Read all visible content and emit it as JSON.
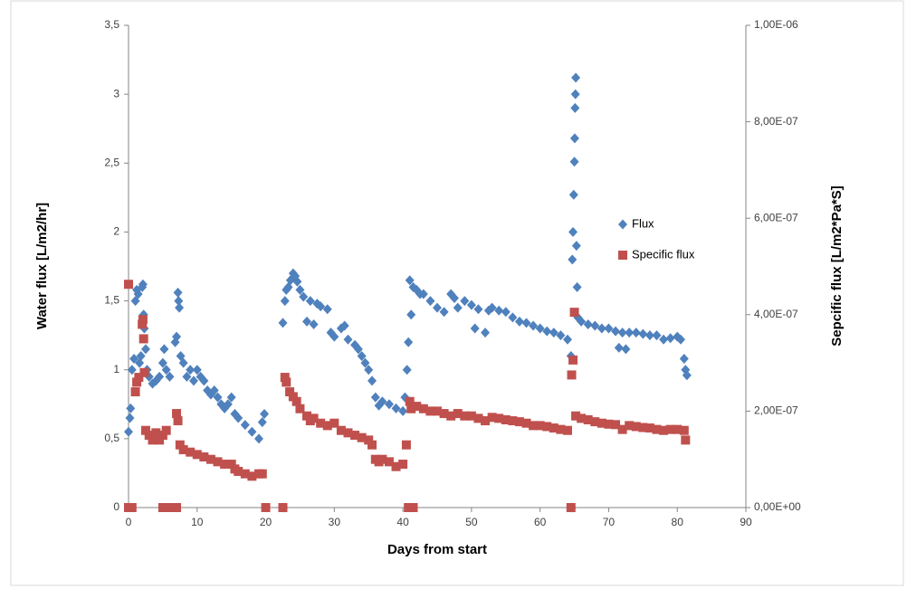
{
  "chart_data": {
    "type": "scatter",
    "xlabel": "Days from start",
    "ylabel": "Water flux [L/m2/hr]",
    "y2label": "Sepcific flux [L/m2*Pa*S]",
    "xlim": [
      0,
      90
    ],
    "xticks": [
      0,
      10,
      20,
      30,
      40,
      50,
      60,
      70,
      80,
      90
    ],
    "ylim": [
      0,
      3.5
    ],
    "yticks": [
      0,
      {
        "value": 0.5,
        "label": "0,5"
      },
      1,
      {
        "value": 1.5,
        "label": "1,5"
      },
      2,
      {
        "value": 2.5,
        "label": "2,5"
      },
      3,
      {
        "value": 3.5,
        "label": "3,5"
      }
    ],
    "y2lim": [
      0,
      1e-06
    ],
    "y2ticks": [
      {
        "value": 0,
        "label": "0,00E+00"
      },
      {
        "value": 2e-07,
        "label": "2,00E-07"
      },
      {
        "value": 4e-07,
        "label": "4,00E-07"
      },
      {
        "value": 6e-07,
        "label": "6,00E-07"
      },
      {
        "value": 8e-07,
        "label": "8,00E-07"
      },
      {
        "value": 1e-06,
        "label": "1,00E-06"
      }
    ],
    "grid": false,
    "legend": "right",
    "series": [
      {
        "name": "Flux",
        "color": "#4f81bd",
        "marker": "diamond",
        "x": [
          0,
          0.2,
          0.3,
          0.5,
          0.8,
          1,
          1.2,
          1.4,
          1.6,
          1.8,
          2,
          2.1,
          2.2,
          2.3,
          2.5,
          2.7,
          3,
          3.5,
          4,
          4.5,
          5,
          5.2,
          5.5,
          6,
          6.8,
          7,
          7.2,
          7.3,
          7.4,
          7.6,
          8,
          8.5,
          9,
          9.5,
          10,
          10.5,
          11,
          11.5,
          12,
          12.5,
          13,
          13.5,
          14,
          14.5,
          15,
          15.5,
          16,
          17,
          18,
          19,
          19.5,
          19.8,
          22.6,
          22.5,
          22.8,
          23,
          23.3,
          23.6,
          24,
          24.3,
          24.6,
          25,
          25.5,
          26,
          26.5,
          27,
          27.5,
          28,
          29,
          29.5,
          30,
          31,
          31.5,
          32,
          33,
          33.5,
          34,
          34.5,
          35,
          35.5,
          36,
          36.5,
          37,
          38,
          39,
          40,
          40.3,
          40.6,
          40.8,
          41,
          41.2,
          41.5,
          42,
          42.5,
          43,
          44,
          45,
          46,
          47,
          47.5,
          48,
          49,
          50,
          50.5,
          51,
          52,
          52.5,
          53,
          54,
          55,
          56,
          57,
          58,
          59,
          60,
          61,
          62,
          63,
          64,
          64.5,
          64.6,
          64.7,
          64.8,
          64.9,
          65,
          65.05,
          65.1,
          65.15,
          65.2,
          65.3,
          65.4,
          65.5,
          66,
          67,
          68,
          69,
          70,
          71,
          71.5,
          72,
          72.5,
          73,
          74,
          75,
          76,
          77,
          78,
          79,
          80,
          80.5,
          81,
          81.2,
          81.4
        ],
        "values": [
          0.55,
          0.65,
          0.72,
          1.0,
          1.08,
          1.5,
          1.58,
          1.55,
          1.05,
          1.1,
          1.6,
          1.62,
          1.4,
          1.3,
          1.15,
          1.0,
          0.95,
          0.9,
          0.92,
          0.95,
          1.05,
          1.15,
          1.0,
          0.95,
          1.2,
          1.24,
          1.56,
          1.5,
          1.45,
          1.1,
          1.05,
          0.95,
          1.0,
          0.92,
          1.0,
          0.95,
          0.92,
          0.85,
          0.82,
          0.85,
          0.8,
          0.75,
          0.72,
          0.75,
          0.8,
          0.68,
          0.65,
          0.6,
          0.55,
          0.5,
          0.62,
          0.68,
          0,
          1.34,
          1.5,
          1.58,
          1.6,
          1.65,
          1.7,
          1.68,
          1.64,
          1.58,
          1.53,
          1.35,
          1.5,
          1.33,
          1.48,
          1.46,
          1.44,
          1.27,
          1.24,
          1.3,
          1.32,
          1.22,
          1.18,
          1.15,
          1.1,
          1.05,
          1.0,
          0.92,
          0.8,
          0.74,
          0.77,
          0.75,
          0.72,
          0.7,
          0.8,
          1.0,
          1.2,
          1.65,
          1.4,
          1.6,
          1.58,
          1.55,
          1.55,
          1.5,
          1.45,
          1.42,
          1.55,
          1.52,
          1.45,
          1.5,
          1.47,
          1.3,
          1.44,
          1.27,
          1.43,
          1.45,
          1.43,
          1.42,
          1.38,
          1.35,
          1.34,
          1.32,
          1.3,
          1.28,
          1.27,
          1.25,
          1.22,
          1.1,
          0,
          1.8,
          2.0,
          2.27,
          2.51,
          2.68,
          2.9,
          3.0,
          3.12,
          1.9,
          1.6,
          1.38,
          1.35,
          1.33,
          1.32,
          1.3,
          1.3,
          1.28,
          1.16,
          1.27,
          1.15,
          1.27,
          1.27,
          1.26,
          1.25,
          1.25,
          1.22,
          1.23,
          1.24,
          1.22,
          1.08,
          1.0,
          0.96
        ]
      },
      {
        "name": "Specific flux",
        "color": "#c0504d",
        "marker": "square",
        "axis": "y2",
        "x": [
          0,
          0,
          0.5,
          1,
          1.2,
          1.5,
          2,
          2.1,
          2.2,
          2.3,
          2.5,
          3,
          3.5,
          4,
          4.5,
          5,
          5.5,
          5,
          6,
          7,
          7,
          7.2,
          7.5,
          8,
          9,
          10,
          11,
          12,
          13,
          14,
          15,
          15.5,
          16,
          17,
          18,
          19,
          19.5,
          20,
          22.5,
          22.8,
          23,
          23.5,
          24,
          24.5,
          25,
          26,
          26.5,
          27,
          28,
          29,
          30,
          31,
          32,
          33,
          34,
          35,
          35.5,
          36,
          36.5,
          37,
          38,
          39,
          40,
          40.5,
          40.8,
          41.5,
          41,
          41.2,
          42,
          43,
          44,
          45,
          46,
          47,
          48,
          49,
          50,
          51,
          52,
          53,
          54,
          55,
          56,
          57,
          58,
          59,
          60,
          61,
          62,
          63,
          64,
          64.5,
          64.6,
          64.8,
          65,
          65.2,
          66,
          67,
          68,
          69,
          70,
          71,
          72,
          73,
          74,
          75,
          76,
          77,
          78,
          79,
          80,
          81,
          81.2
        ],
        "values": [
          4.63e-07,
          0,
          0,
          2.4e-07,
          2.6e-07,
          2.7e-07,
          3.8e-07,
          3.9e-07,
          3.5e-07,
          2.8e-07,
          1.6e-07,
          1.5e-07,
          1.4e-07,
          1.55e-07,
          1.4e-07,
          1.5e-07,
          1.6e-07,
          0,
          0,
          0,
          1.95e-07,
          1.8e-07,
          1.3e-07,
          1.2e-07,
          1.15e-07,
          1.1e-07,
          1.05e-07,
          1e-07,
          9.5e-08,
          9e-08,
          9e-08,
          8e-08,
          7.5e-08,
          7e-08,
          6.5e-08,
          7e-08,
          7e-08,
          0,
          0,
          2.7e-07,
          2.6e-07,
          2.4e-07,
          2.3e-07,
          2.2e-07,
          2.05e-07,
          1.9e-07,
          1.8e-07,
          1.85e-07,
          1.75e-07,
          1.7e-07,
          1.75e-07,
          1.6e-07,
          1.55e-07,
          1.5e-07,
          1.45e-07,
          1.4e-07,
          1.3e-07,
          1e-07,
          9.5e-08,
          1e-07,
          9.5e-08,
          8.5e-08,
          9e-08,
          1.3e-07,
          0,
          0,
          2.2e-07,
          2.05e-07,
          2.1e-07,
          2.05e-07,
          2e-07,
          2e-07,
          1.95e-07,
          1.9e-07,
          1.95e-07,
          1.9e-07,
          1.9e-07,
          1.85e-07,
          1.8e-07,
          1.87e-07,
          1.85e-07,
          1.82e-07,
          1.8e-07,
          1.78e-07,
          1.75e-07,
          1.7e-07,
          1.7e-07,
          1.68e-07,
          1.65e-07,
          1.62e-07,
          1.6e-07,
          0,
          2.75e-07,
          3.06e-07,
          4.05e-07,
          1.9e-07,
          1.85e-07,
          1.82e-07,
          1.78e-07,
          1.75e-07,
          1.73e-07,
          1.72e-07,
          1.62e-07,
          1.7e-07,
          1.68e-07,
          1.66e-07,
          1.65e-07,
          1.62e-07,
          1.6e-07,
          1.62e-07,
          1.62e-07,
          1.6e-07,
          1.4e-07
        ]
      }
    ]
  }
}
